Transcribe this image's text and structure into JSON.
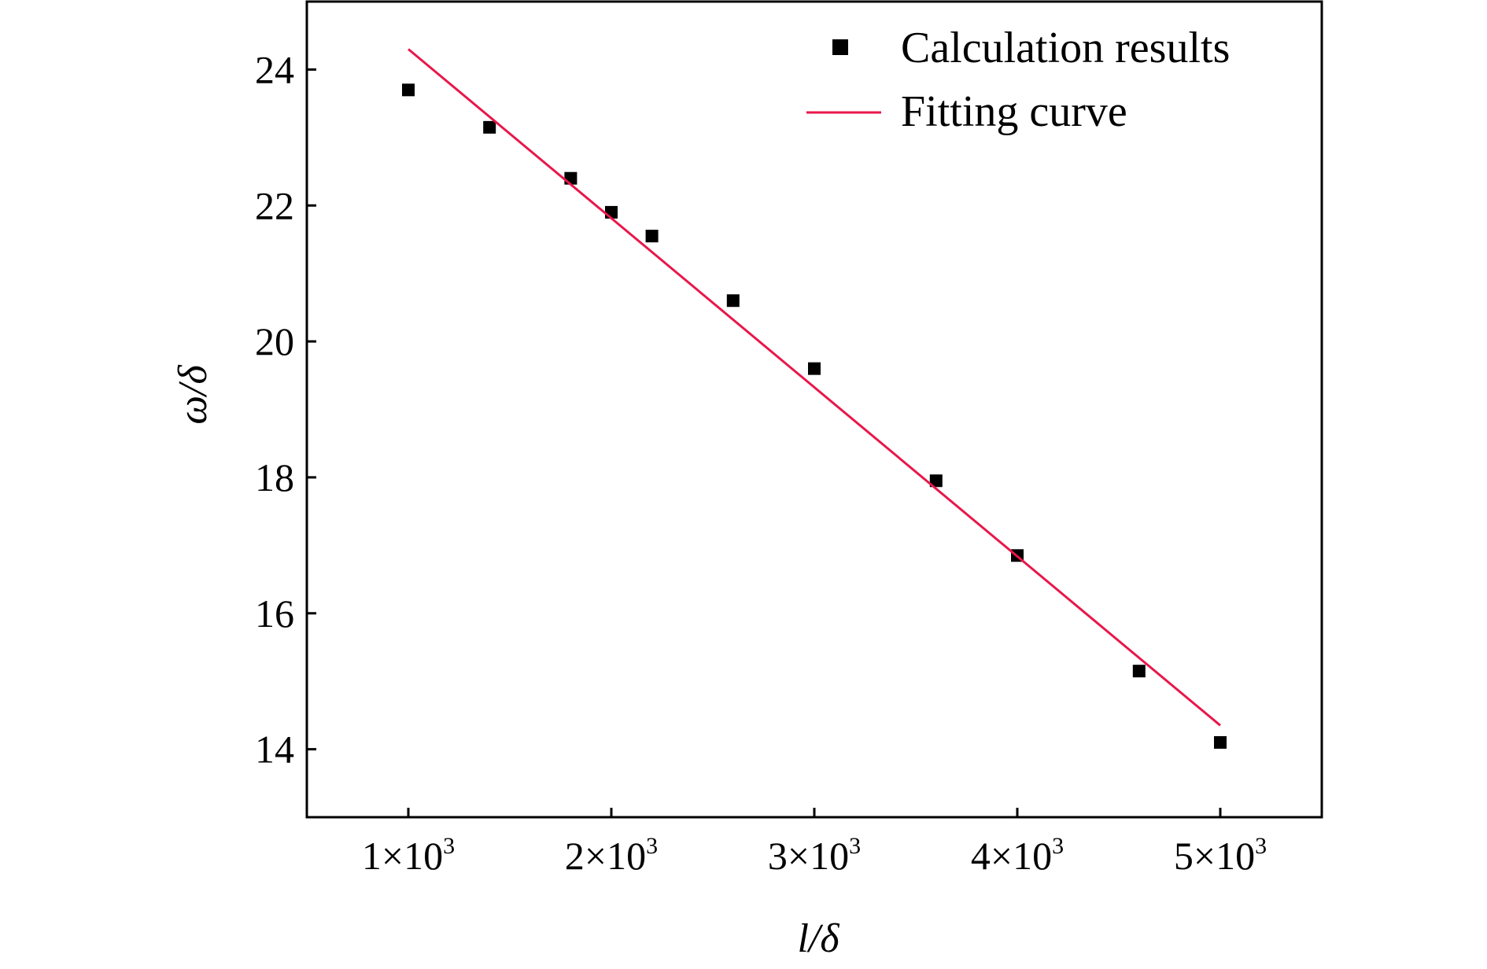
{
  "chart_data": {
    "type": "scatter",
    "xlabel": "l/δ",
    "ylabel": "ω/δ",
    "xlim": [
      500,
      5500
    ],
    "ylim": [
      13,
      25
    ],
    "x_ticks": [
      {
        "value": 1000,
        "mantissa": "1×10",
        "exp": "3"
      },
      {
        "value": 2000,
        "mantissa": "2×10",
        "exp": "3"
      },
      {
        "value": 3000,
        "mantissa": "3×10",
        "exp": "3"
      },
      {
        "value": 4000,
        "mantissa": "4×10",
        "exp": "3"
      },
      {
        "value": 5000,
        "mantissa": "5×10",
        "exp": "3"
      }
    ],
    "y_ticks": [
      {
        "value": 14,
        "label": "14"
      },
      {
        "value": 16,
        "label": "16"
      },
      {
        "value": 18,
        "label": "18"
      },
      {
        "value": 20,
        "label": "20"
      },
      {
        "value": 22,
        "label": "22"
      },
      {
        "value": 24,
        "label": "24"
      }
    ],
    "grid": false,
    "legend_position": "top-right",
    "series": [
      {
        "name": "Calculation results",
        "kind": "scatter",
        "marker": "square",
        "color": "#000000",
        "x": [
          1000,
          1400,
          1800,
          2000,
          2200,
          2600,
          3000,
          3600,
          4000,
          4600,
          5000
        ],
        "y": [
          23.7,
          23.15,
          22.4,
          21.9,
          21.55,
          20.6,
          19.6,
          17.95,
          16.85,
          15.15,
          14.1
        ]
      },
      {
        "name": "Fitting curve",
        "kind": "line",
        "color": "#e8174a",
        "x": [
          1000,
          5000
        ],
        "y": [
          24.3,
          14.35
        ]
      }
    ]
  }
}
